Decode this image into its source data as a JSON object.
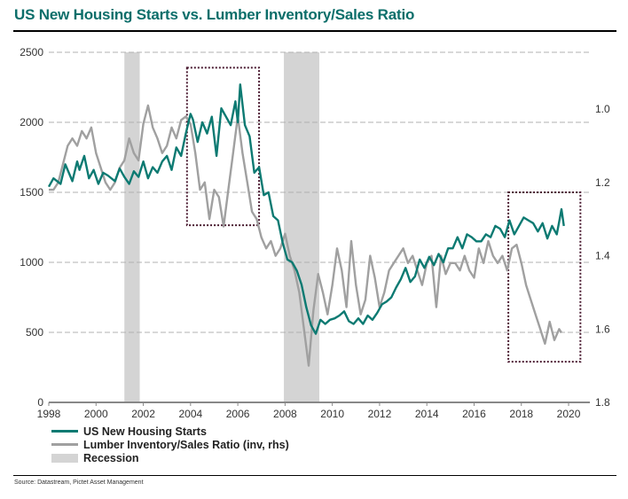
{
  "title": "US New Housing Starts vs. Lumber Inventory/Sales Ratio",
  "source": "Source: Datastream, Pictet Asset Management",
  "colors": {
    "housing": "#0c7a72",
    "lumber": "#a0a0a0",
    "recession": "#d4d4d4",
    "highlight_box": "#4a1a30",
    "grid": "#b0b0b0",
    "title": "#0b6e6a"
  },
  "legend": [
    {
      "label": "US New Housing Starts",
      "kind": "line",
      "color": "#0c7a72"
    },
    {
      "label": "Lumber Inventory/Sales Ratio (inv, rhs)",
      "kind": "line",
      "color": "#a0a0a0"
    },
    {
      "label": "Recession",
      "kind": "box",
      "color": "#d4d4d4"
    }
  ],
  "chart_data": {
    "type": "line",
    "title": "US New Housing Starts vs. Lumber Inventory/Sales Ratio",
    "xlabel": "",
    "ylabel": "",
    "x_ticks": [
      1998,
      2000,
      2002,
      2004,
      2006,
      2008,
      2010,
      2012,
      2014,
      2016,
      2018,
      2020
    ],
    "xlim": [
      1998,
      2020.9
    ],
    "y_left": {
      "ticks": [
        0,
        500,
        1000,
        1500,
        2000,
        2500
      ],
      "lim": [
        0,
        2500
      ]
    },
    "y_right": {
      "ticks": [
        1.0,
        1.2,
        1.4,
        1.6,
        1.8
      ],
      "lim": [
        0.845,
        1.8
      ],
      "inverted": true
    },
    "legend_position": "bottom-left",
    "grid": true,
    "recessions": [
      [
        2001.2,
        2001.85
      ],
      [
        2007.95,
        2009.45
      ]
    ],
    "highlight_boxes": [
      {
        "x": [
          2003.85,
          2006.9
        ],
        "y_left": [
          1265,
          2390
        ]
      },
      {
        "x": [
          2017.45,
          2020.5
        ],
        "y_left": [
          290,
          1500
        ]
      }
    ],
    "series": [
      {
        "name": "US New Housing Starts",
        "axis": "left",
        "x": [
          1998.0,
          1998.2,
          1998.5,
          1998.7,
          1999.0,
          1999.2,
          1999.3,
          1999.5,
          1999.7,
          1999.9,
          2000.1,
          2000.3,
          2000.5,
          2000.8,
          2001.0,
          2001.2,
          2001.4,
          2001.6,
          2001.8,
          2002.0,
          2002.2,
          2002.4,
          2002.6,
          2002.8,
          2003.0,
          2003.2,
          2003.4,
          2003.6,
          2003.8,
          2004.0,
          2004.1,
          2004.3,
          2004.5,
          2004.7,
          2004.9,
          2005.1,
          2005.3,
          2005.5,
          2005.7,
          2005.9,
          2006.0,
          2006.1,
          2006.3,
          2006.5,
          2006.7,
          2006.9,
          2007.1,
          2007.3,
          2007.5,
          2007.7,
          2007.9,
          2008.1,
          2008.3,
          2008.5,
          2008.7,
          2008.9,
          2009.1,
          2009.3,
          2009.5,
          2009.7,
          2009.9,
          2010.1,
          2010.3,
          2010.5,
          2010.7,
          2010.9,
          2011.1,
          2011.3,
          2011.5,
          2011.7,
          2011.9,
          2012.1,
          2012.3,
          2012.5,
          2012.7,
          2012.9,
          2013.1,
          2013.3,
          2013.5,
          2013.7,
          2013.9,
          2014.1,
          2014.3,
          2014.5,
          2014.7,
          2014.9,
          2015.1,
          2015.3,
          2015.5,
          2015.7,
          2015.9,
          2016.1,
          2016.3,
          2016.5,
          2016.7,
          2016.9,
          2017.1,
          2017.3,
          2017.5,
          2017.7,
          2017.9,
          2018.1,
          2018.3,
          2018.5,
          2018.7,
          2018.9,
          2019.1,
          2019.3,
          2019.5,
          2019.6,
          2019.7,
          2019.8
        ],
        "values": [
          1540,
          1600,
          1560,
          1700,
          1580,
          1720,
          1660,
          1760,
          1600,
          1660,
          1560,
          1640,
          1620,
          1580,
          1670,
          1610,
          1560,
          1650,
          1610,
          1720,
          1600,
          1680,
          1640,
          1720,
          1760,
          1660,
          1820,
          1760,
          1920,
          2060,
          2020,
          1860,
          2000,
          1920,
          2040,
          1760,
          2100,
          2040,
          1980,
          2150,
          2000,
          2270,
          1980,
          1900,
          1640,
          1680,
          1480,
          1500,
          1330,
          1300,
          1140,
          1020,
          1000,
          940,
          840,
          680,
          550,
          490,
          590,
          560,
          590,
          600,
          620,
          650,
          580,
          560,
          600,
          560,
          620,
          590,
          640,
          700,
          720,
          750,
          820,
          880,
          960,
          860,
          900,
          1020,
          960,
          1040,
          980,
          1060,
          1000,
          1100,
          1100,
          1180,
          1100,
          1200,
          1180,
          1150,
          1150,
          1200,
          1180,
          1260,
          1240,
          1180,
          1300,
          1200,
          1260,
          1320,
          1300,
          1280,
          1220,
          1280,
          1170,
          1260,
          1200,
          1290,
          1380,
          1260
        ]
      },
      {
        "name": "Lumber Inventory/Sales Ratio (inv, rhs)",
        "axis": "right",
        "x": [
          1998.0,
          1998.2,
          1998.4,
          1998.6,
          1998.8,
          1999.0,
          1999.2,
          1999.4,
          1999.6,
          1999.8,
          2000.0,
          2000.2,
          2000.4,
          2000.6,
          2000.8,
          2001.0,
          2001.2,
          2001.4,
          2001.6,
          2001.8,
          2002.0,
          2002.2,
          2002.4,
          2002.6,
          2002.8,
          2003.0,
          2003.2,
          2003.4,
          2003.6,
          2003.8,
          2004.0,
          2004.2,
          2004.4,
          2004.6,
          2004.8,
          2005.0,
          2005.2,
          2005.4,
          2005.6,
          2005.8,
          2006.0,
          2006.2,
          2006.4,
          2006.6,
          2006.8,
          2007.0,
          2007.2,
          2007.4,
          2007.6,
          2007.8,
          2008.0,
          2008.2,
          2008.4,
          2008.6,
          2008.8,
          2009.0,
          2009.2,
          2009.4,
          2009.6,
          2009.8,
          2010.0,
          2010.2,
          2010.4,
          2010.6,
          2010.8,
          2011.0,
          2011.2,
          2011.4,
          2011.6,
          2011.8,
          2012.0,
          2012.2,
          2012.4,
          2012.6,
          2012.8,
          2013.0,
          2013.2,
          2013.4,
          2013.6,
          2013.8,
          2014.0,
          2014.2,
          2014.4,
          2014.6,
          2014.8,
          2015.0,
          2015.2,
          2015.4,
          2015.6,
          2015.8,
          2016.0,
          2016.2,
          2016.4,
          2016.6,
          2016.8,
          2017.0,
          2017.2,
          2017.4,
          2017.6,
          2017.8,
          2018.0,
          2018.2,
          2018.4,
          2018.6,
          2018.8,
          2019.0,
          2019.2,
          2019.4,
          2019.6,
          2019.7
        ],
        "values": [
          1.22,
          1.22,
          1.2,
          1.15,
          1.1,
          1.08,
          1.1,
          1.06,
          1.08,
          1.05,
          1.12,
          1.16,
          1.2,
          1.22,
          1.2,
          1.16,
          1.14,
          1.08,
          1.12,
          1.14,
          1.04,
          0.99,
          1.05,
          1.08,
          1.12,
          1.1,
          1.05,
          1.08,
          1.03,
          1.02,
          1.04,
          1.12,
          1.22,
          1.2,
          1.3,
          1.22,
          1.24,
          1.32,
          1.22,
          1.12,
          1.02,
          1.12,
          1.2,
          1.28,
          1.3,
          1.35,
          1.38,
          1.36,
          1.4,
          1.38,
          1.34,
          1.4,
          1.44,
          1.5,
          1.6,
          1.7,
          1.55,
          1.45,
          1.5,
          1.56,
          1.48,
          1.38,
          1.44,
          1.54,
          1.36,
          1.48,
          1.56,
          1.52,
          1.4,
          1.46,
          1.54,
          1.5,
          1.44,
          1.42,
          1.4,
          1.38,
          1.42,
          1.4,
          1.44,
          1.48,
          1.42,
          1.4,
          1.54,
          1.4,
          1.45,
          1.42,
          1.42,
          1.44,
          1.4,
          1.44,
          1.46,
          1.38,
          1.42,
          1.36,
          1.4,
          1.42,
          1.4,
          1.44,
          1.38,
          1.37,
          1.42,
          1.48,
          1.52,
          1.56,
          1.6,
          1.64,
          1.58,
          1.63,
          1.6,
          1.61
        ]
      }
    ]
  }
}
